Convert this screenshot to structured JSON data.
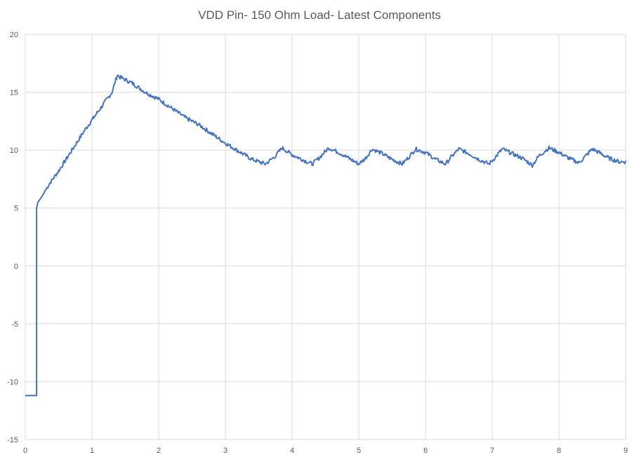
{
  "chart_data": {
    "type": "line",
    "title": "VDD Pin- 150 Ohm Load- Latest Components",
    "xlabel": "",
    "ylabel": "",
    "xlim": [
      0,
      9
    ],
    "ylim": [
      -15,
      20
    ],
    "x_ticks": [
      0,
      1,
      2,
      3,
      4,
      5,
      6,
      7,
      8,
      9
    ],
    "y_ticks": [
      -15,
      -10,
      -5,
      0,
      5,
      10,
      15,
      20
    ],
    "grid": true,
    "legend": "none",
    "series": [
      {
        "color": "#4472C4",
        "x": [
          0,
          0.17,
          0.17,
          0.19,
          0.25,
          0.35,
          0.5,
          0.7,
          0.9,
          1.1,
          1.3,
          1.38,
          1.42,
          1.6,
          1.8,
          2.0,
          2.2,
          2.4,
          2.6,
          2.8,
          3.0,
          3.2,
          3.4,
          3.6,
          3.75,
          3.85,
          4.0,
          4.15,
          4.3,
          4.4,
          4.55,
          4.7,
          4.85,
          5.0,
          5.1,
          5.2,
          5.35,
          5.5,
          5.65,
          5.75,
          5.85,
          6.0,
          6.15,
          6.3,
          6.4,
          6.5,
          6.65,
          6.8,
          6.95,
          7.05,
          7.15,
          7.3,
          7.45,
          7.6,
          7.7,
          7.85,
          8.0,
          8.15,
          8.3,
          8.4,
          8.5,
          8.6,
          8.75,
          8.9,
          9.0
        ],
        "y": [
          -11.2,
          -11.2,
          5.0,
          5.5,
          6.0,
          7.0,
          8.2,
          10.0,
          11.8,
          13.4,
          15.0,
          16.5,
          16.3,
          15.8,
          15.0,
          14.4,
          13.6,
          12.8,
          12.2,
          11.4,
          10.6,
          9.9,
          9.2,
          8.8,
          9.5,
          10.2,
          9.6,
          9.2,
          8.8,
          9.3,
          10.2,
          9.8,
          9.3,
          8.8,
          9.3,
          10.1,
          9.7,
          9.2,
          8.8,
          9.4,
          10.1,
          9.8,
          9.2,
          8.8,
          9.5,
          10.1,
          9.7,
          9.2,
          8.8,
          9.4,
          10.1,
          9.7,
          9.3,
          8.7,
          9.5,
          10.2,
          9.8,
          9.3,
          8.9,
          9.5,
          10.1,
          9.8,
          9.3,
          9.0,
          9.0
        ]
      }
    ]
  }
}
